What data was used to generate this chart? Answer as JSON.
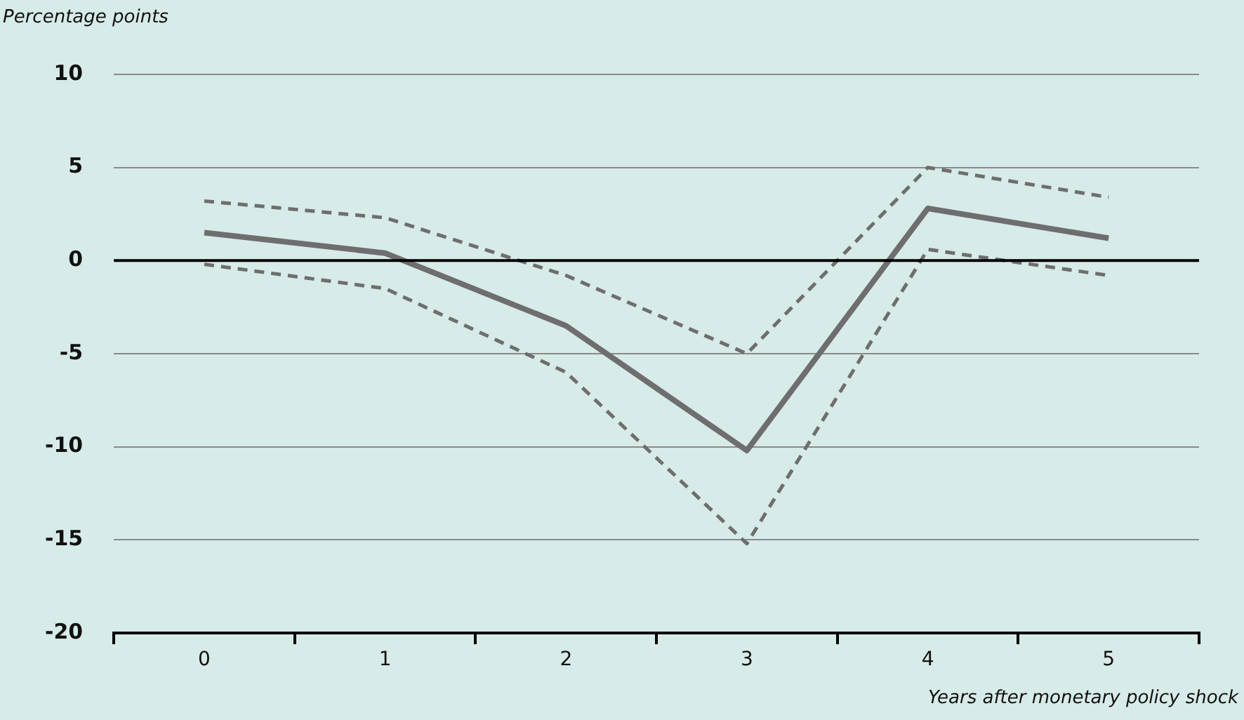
{
  "chart_data": {
    "type": "line",
    "ylabel": "Percentage points",
    "xlabel": "Years after monetary policy shock",
    "categories": [
      "0",
      "1",
      "2",
      "3",
      "4",
      "5"
    ],
    "series": [
      {
        "color": "#6e6e6e",
        "values": [
          1.5,
          0.4,
          -3.5,
          -10.2,
          2.8,
          1.2
        ],
        "line_style": "solid"
      },
      {
        "color": "#6e6e6e",
        "values": [
          3.2,
          2.3,
          -0.8,
          -5.0,
          5.0,
          3.4
        ],
        "line_style": "dashed"
      },
      {
        "color": "#6e6e6e",
        "values": [
          -0.2,
          -1.5,
          -6.0,
          -15.2,
          0.6,
          -0.8
        ],
        "line_style": "dashed"
      }
    ],
    "ylim": [
      -20,
      10
    ],
    "yticks": [
      -20,
      -15,
      -10,
      -5,
      0,
      5,
      10
    ],
    "grid": "y",
    "legend": false,
    "marker": "none",
    "ref_lines": [
      {
        "axis": "y",
        "value": 0,
        "color": "#000000"
      }
    ]
  }
}
